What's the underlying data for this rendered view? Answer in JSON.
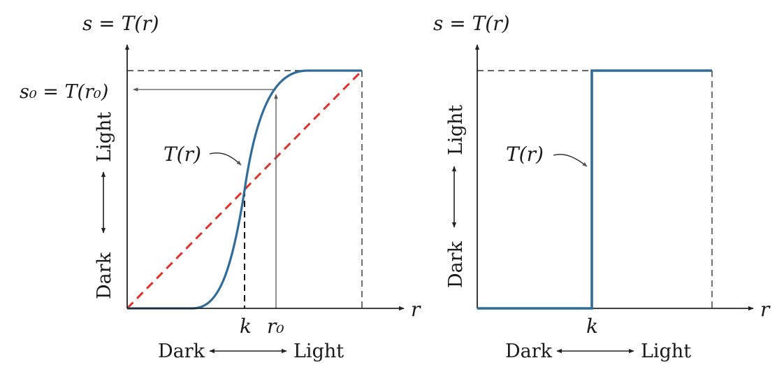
{
  "left_panel": {
    "y_axis_label": "s = T(r)",
    "x_axis_label": "r",
    "s0_label": "s₀ = T(r₀)",
    "curve_label": "T(r)",
    "k_label": "k",
    "r0_label": "r₀",
    "vertical_dark": "Dark",
    "vertical_light": "Light",
    "horizontal_dark": "Dark",
    "horizontal_light": "Light"
  },
  "right_panel": {
    "y_axis_label": "s = T(r)",
    "x_axis_label": "r",
    "curve_label": "T(r)",
    "k_label": "k",
    "vertical_dark": "Dark",
    "vertical_light": "Light",
    "horizontal_dark": "Dark",
    "horizontal_light": "Light"
  },
  "colors": {
    "curve": "#2f6c99",
    "identity_line": "#e0322b",
    "axis": "#222222",
    "guide": "#555555"
  }
}
